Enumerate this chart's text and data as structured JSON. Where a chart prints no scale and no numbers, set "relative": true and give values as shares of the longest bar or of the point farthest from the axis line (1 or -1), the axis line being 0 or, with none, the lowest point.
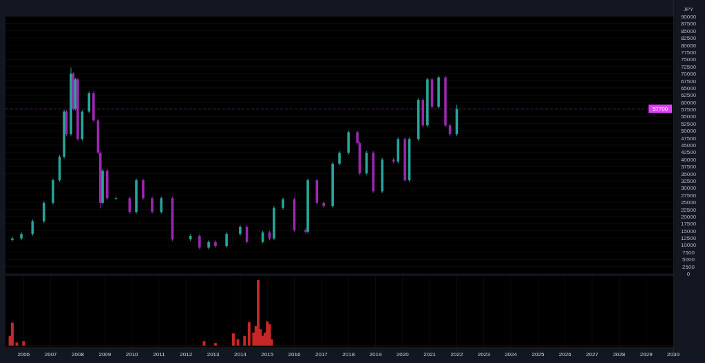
{
  "chart_data": [
    {
      "type": "candlestick",
      "x": [
        "2005-08",
        "2005-12",
        "2006-05",
        "2006-10",
        "2007-02",
        "2007-05",
        "2007-07",
        "2007-08",
        "2007-10",
        "2007-11",
        "2007-12",
        "2008-01",
        "2008-03",
        "2008-06",
        "2008-08",
        "2008-10",
        "2008-11",
        "2008-12",
        "2009-02",
        "2009-06",
        "2009-12",
        "2010-03",
        "2010-06",
        "2010-10",
        "2011-02",
        "2011-07",
        "2012-03",
        "2012-07",
        "2012-11",
        "2013-02",
        "2013-07",
        "2014-01",
        "2014-04",
        "2014-11",
        "2015-02",
        "2015-04",
        "2015-08",
        "2016-01",
        "2016-06",
        "2016-07",
        "2016-11",
        "2017-02",
        "2017-06",
        "2017-09",
        "2018-01",
        "2018-05",
        "2018-06",
        "2018-09",
        "2018-12",
        "2019-04",
        "2019-09",
        "2019-11",
        "2020-02",
        "2020-04",
        "2020-08",
        "2020-10",
        "2020-12",
        "2021-02",
        "2021-05",
        "2021-08",
        "2021-10",
        "2022-01"
      ],
      "ohlc": [
        [
          11800,
          12900,
          11200,
          12300
        ],
        [
          12300,
          14500,
          11700,
          13900
        ],
        [
          13900,
          18900,
          13300,
          18300
        ],
        [
          18300,
          25400,
          17700,
          24800
        ],
        [
          24800,
          33300,
          24200,
          32700
        ],
        [
          32700,
          41500,
          32100,
          40900
        ],
        [
          40900,
          57300,
          40300,
          56700
        ],
        [
          56700,
          57300,
          48200,
          48800
        ],
        [
          48800,
          72100,
          48200,
          70000
        ],
        [
          70000,
          70600,
          57100,
          57700
        ],
        [
          57700,
          68600,
          57100,
          68000
        ],
        [
          68000,
          68600,
          46500,
          47100
        ],
        [
          47100,
          57300,
          46500,
          56700
        ],
        [
          56700,
          63800,
          56100,
          63200
        ],
        [
          63200,
          63800,
          53000,
          53600
        ],
        [
          53600,
          54200,
          41700,
          42300
        ],
        [
          42300,
          42900,
          22800,
          24800
        ],
        [
          24800,
          36600,
          24200,
          36000
        ],
        [
          36000,
          36600,
          25800,
          26400
        ],
        [
          26400,
          27000,
          25800,
          26400
        ],
        [
          26400,
          27000,
          21000,
          21600
        ],
        [
          21600,
          33300,
          21000,
          32700
        ],
        [
          32700,
          33300,
          25800,
          26400
        ],
        [
          26400,
          27000,
          21000,
          21600
        ],
        [
          21600,
          27000,
          21000,
          26400
        ],
        [
          26400,
          27000,
          11400,
          12000
        ],
        [
          12000,
          13800,
          11400,
          13200
        ],
        [
          13200,
          13800,
          8500,
          9100
        ],
        [
          9100,
          11700,
          8500,
          11100
        ],
        [
          11100,
          11700,
          9000,
          9600
        ],
        [
          9600,
          14500,
          9000,
          13900
        ],
        [
          13900,
          17000,
          13300,
          16400
        ],
        [
          16400,
          17000,
          10500,
          11100
        ],
        [
          11100,
          15000,
          10500,
          14400
        ],
        [
          14400,
          15000,
          11700,
          12300
        ],
        [
          12300,
          23600,
          11700,
          23000
        ],
        [
          23000,
          26600,
          22400,
          26000
        ],
        [
          26000,
          26600,
          14600,
          15200
        ],
        [
          15200,
          15800,
          14100,
          14700
        ],
        [
          14700,
          33300,
          14100,
          32700
        ],
        [
          32700,
          33300,
          24200,
          24800
        ],
        [
          24800,
          25400,
          23000,
          23600
        ],
        [
          23600,
          39100,
          23000,
          38500
        ],
        [
          38500,
          42900,
          37900,
          42300
        ],
        [
          42300,
          50100,
          41700,
          49500
        ],
        [
          49500,
          50100,
          45100,
          45700
        ],
        [
          45700,
          46300,
          34500,
          35100
        ],
        [
          35100,
          42900,
          34500,
          42300
        ],
        [
          42300,
          42900,
          28200,
          28800
        ],
        [
          28800,
          40500,
          28200,
          39900
        ],
        [
          39900,
          40500,
          38600,
          39200
        ],
        [
          39200,
          47700,
          38600,
          47100
        ],
        [
          47100,
          47700,
          32100,
          32700
        ],
        [
          32700,
          47700,
          32100,
          47100
        ],
        [
          47100,
          61400,
          46500,
          60800
        ],
        [
          60800,
          61400,
          51300,
          51900
        ],
        [
          51900,
          68600,
          51300,
          68000
        ],
        [
          68000,
          68600,
          57800,
          58400
        ],
        [
          58400,
          69300,
          57800,
          68700
        ],
        [
          68700,
          69300,
          51300,
          51900
        ],
        [
          51900,
          52500,
          48200,
          48800
        ],
        [
          48800,
          59100,
          48200,
          57700
        ]
      ],
      "colors": [
        "#26a69a",
        "#26a69a",
        "#26a69a",
        "#26a69a",
        "#26a69a",
        "#26a69a",
        "#26a69a",
        "#9c27b0",
        "#26a69a",
        "#9c27b0",
        "#26a69a",
        "#9c27b0",
        "#26a69a",
        "#26a69a",
        "#9c27b0",
        "#9c27b0",
        "#9c27b0",
        "#26a69a",
        "#9c27b0",
        "#26a69a",
        "#9c27b0",
        "#26a69a",
        "#9c27b0",
        "#9c27b0",
        "#26a69a",
        "#9c27b0",
        "#26a69a",
        "#9c27b0",
        "#26a69a",
        "#9c27b0",
        "#26a69a",
        "#26a69a",
        "#9c27b0",
        "#26a69a",
        "#9c27b0",
        "#26a69a",
        "#26a69a",
        "#9c27b0",
        "#9c27b0",
        "#26a69a",
        "#9c27b0",
        "#9c27b0",
        "#26a69a",
        "#26a69a",
        "#26a69a",
        "#9c27b0",
        "#9c27b0",
        "#26a69a",
        "#9c27b0",
        "#26a69a",
        "#9c27b0",
        "#26a69a",
        "#9c27b0",
        "#26a69a",
        "#26a69a",
        "#9c27b0",
        "#26a69a",
        "#9c27b0",
        "#26a69a",
        "#9c27b0",
        "#9c27b0",
        "#26a69a"
      ],
      "xlim": [
        "2005-05",
        "2030-01"
      ],
      "ylim": [
        0,
        90000
      ],
      "yticks": [
        0,
        2500,
        5000,
        7500,
        10000,
        12500,
        15000,
        17500,
        20000,
        22500,
        25000,
        27500,
        30000,
        32500,
        35000,
        37500,
        40000,
        42500,
        45000,
        47500,
        50000,
        52500,
        55000,
        57500,
        60000,
        62500,
        65000,
        67500,
        70000,
        72500,
        75000,
        77500,
        80000,
        82500,
        85000,
        87500,
        90000
      ],
      "ylabel": "JPY",
      "grid": true,
      "tick_labels": "y",
      "ref_lines": [
        {
          "axis": "y",
          "value": 57700,
          "label": "57700",
          "color": "#e040fb",
          "line_style": "dashed"
        }
      ]
    },
    {
      "type": "bar",
      "relative": true,
      "color": "#c62828",
      "x": [
        "2005-07",
        "2005-08",
        "2005-10",
        "2006-01",
        "2012-09",
        "2013-02",
        "2013-10",
        "2013-12",
        "2014-03",
        "2014-05",
        "2014-07",
        "2014-08",
        "2014-09",
        "2014-10",
        "2014-11",
        "2014-12",
        "2015-01",
        "2015-02",
        "2015-03"
      ],
      "values": [
        0.15,
        0.35,
        0.05,
        0.07,
        0.07,
        0.04,
        0.19,
        0.1,
        0.15,
        0.36,
        0.2,
        0.3,
        1,
        0.25,
        0.15,
        0.2,
        0.37,
        0.33,
        0.1
      ],
      "xlim": [
        "2005-05",
        "2030-01"
      ],
      "xticks": [
        "2006",
        "2007",
        "2008",
        "2009",
        "2010",
        "2011",
        "2012",
        "2013",
        "2014",
        "2015",
        "2016",
        "2017",
        "2018",
        "2019",
        "2020",
        "2021",
        "2022",
        "2023",
        "2024",
        "2025",
        "2026",
        "2027",
        "2028",
        "2029",
        "2030"
      ],
      "grid": true,
      "tick_labels": "x"
    }
  ]
}
